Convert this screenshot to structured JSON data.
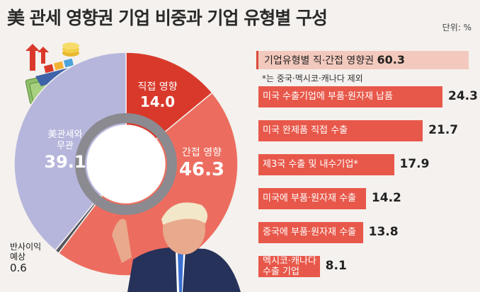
{
  "title": "美 관세 영향권 기업 비중과 기업 유형별 구성",
  "unit": "단위: %",
  "colors": {
    "direct": "#d9392b",
    "indirect": "#ec6d5f",
    "none": "#b6b6dc",
    "reverse": "#55555e",
    "bar": "#e8584a"
  },
  "chart_data": [
    {
      "type": "pie",
      "slices": [
        {
          "label": "직접 영향",
          "value": 14.0,
          "value_text": "14.0"
        },
        {
          "label": "간접 영향",
          "value": 46.3,
          "value_text": "46.3"
        },
        {
          "label": "반사이익\n예상",
          "value": 0.6,
          "value_text": "0.6"
        },
        {
          "label": "美관세와\n무관",
          "value": 39.1,
          "value_text": "39.1"
        }
      ]
    },
    {
      "type": "bar",
      "title": "기업유형별 직·간접 영향권",
      "title_value": "60.3",
      "note": "*는 중국·멕시코·캐나다 제외",
      "categories": [
        "미국 수출기업에 부품·원자재 납품",
        "미국 완제품 직접 수출",
        "제3국 수출 및 내수기업*",
        "미국에 부품·원자재 수출",
        "중국에 부품·원자재 수출",
        "멕시코·캐나다\n수출 기업"
      ],
      "values": [
        24.3,
        21.7,
        17.9,
        14.2,
        13.8,
        8.1
      ],
      "value_texts": [
        "24.3",
        "21.7",
        "17.9",
        "14.2",
        "13.8",
        "8.1"
      ]
    }
  ]
}
